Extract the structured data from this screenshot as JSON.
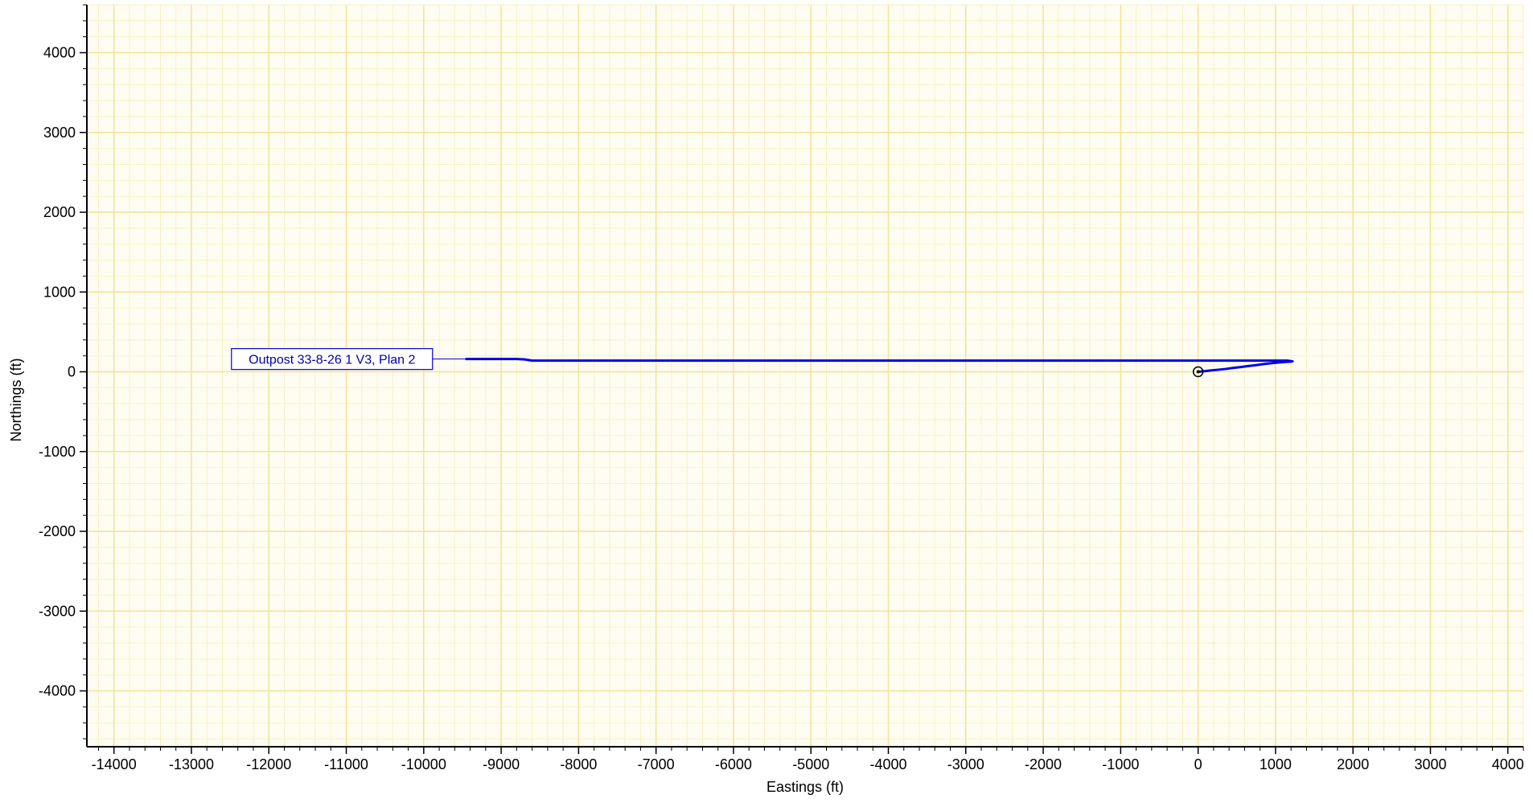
{
  "chart_data": {
    "type": "line",
    "title": "",
    "xlabel": "Eastings (ft)",
    "ylabel": "Northings (ft)",
    "xlim": [
      -14350,
      4200
    ],
    "ylim": [
      -4700,
      4600
    ],
    "grid": true,
    "minor_grid": true,
    "x_ticks": [
      "-14000",
      "-13000",
      "-12000",
      "-11000",
      "-10000",
      "-9000",
      "-8000",
      "-7000",
      "-6000",
      "-5000",
      "-4000",
      "-3000",
      "-2000",
      "-1000",
      "0",
      "1000",
      "2000",
      "3000",
      "4000"
    ],
    "y_ticks": [
      "4000",
      "3000",
      "2000",
      "1000",
      "0",
      "-1000",
      "-2000",
      "-3000",
      "-4000"
    ],
    "colors": {
      "series": "#0000ee",
      "major_grid": "#f3e293",
      "minor_grid": "#f8f0c2",
      "axis": "#000000",
      "label_border": "#0000cc",
      "label_text": "#0000aa"
    },
    "annotation": {
      "text": "Outpost 33-8-26 1 V3, Plan 2",
      "anchor_x": -9450,
      "anchor_y": 160
    },
    "surface_marker": {
      "x": 0,
      "y": 0,
      "shape": "circle-dot"
    },
    "series": [
      {
        "name": "Outpost 33-8-26 1 V3, Plan 2",
        "x": [
          0,
          60,
          150,
          250,
          350,
          450,
          550,
          650,
          750,
          850,
          950,
          1050,
          1150,
          1200,
          1220,
          1150,
          1000,
          0,
          -2000,
          -4000,
          -6000,
          -8000,
          -8600,
          -8700,
          -8800,
          -9450
        ],
        "y": [
          0,
          5,
          15,
          25,
          35,
          48,
          60,
          72,
          84,
          97,
          108,
          118,
          125,
          128,
          132,
          140,
          140,
          140,
          140,
          140,
          140,
          140,
          140,
          155,
          160,
          160
        ]
      }
    ]
  }
}
